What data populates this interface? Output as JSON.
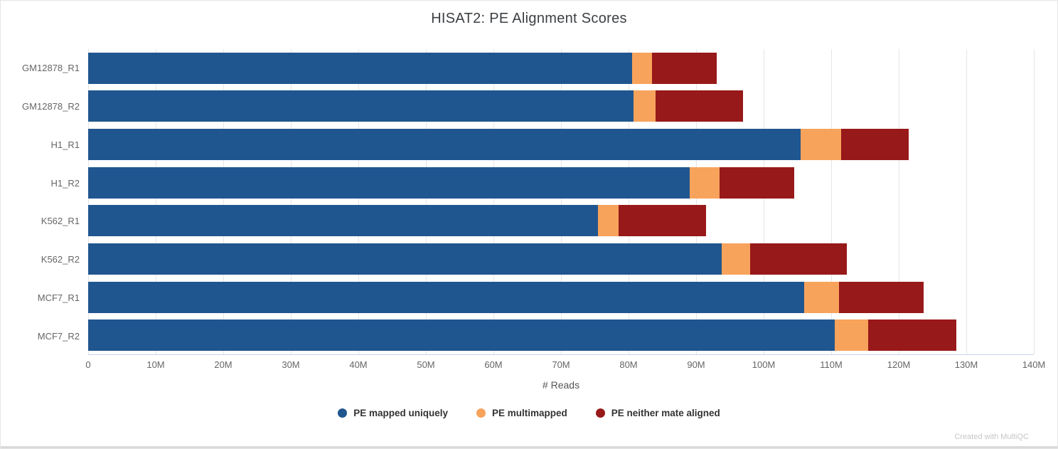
{
  "footer": "Created with MultiQC",
  "chart_data": {
    "type": "bar",
    "orientation": "horizontal",
    "stacked": true,
    "title": "HISAT2: PE Alignment Scores",
    "xlabel": "# Reads",
    "ylabel": "",
    "xlim": [
      0,
      140000000
    ],
    "grid": true,
    "legend_position": "bottom",
    "categories": [
      "GM12878_R1",
      "GM12878_R2",
      "H1_R1",
      "H1_R2",
      "K562_R1",
      "K562_R2",
      "MCF7_R1",
      "MCF7_R2"
    ],
    "x_ticks": [
      {
        "value": 0,
        "label": "0"
      },
      {
        "value": 10000000,
        "label": "10M"
      },
      {
        "value": 20000000,
        "label": "20M"
      },
      {
        "value": 30000000,
        "label": "30M"
      },
      {
        "value": 40000000,
        "label": "40M"
      },
      {
        "value": 50000000,
        "label": "50M"
      },
      {
        "value": 60000000,
        "label": "60M"
      },
      {
        "value": 70000000,
        "label": "70M"
      },
      {
        "value": 80000000,
        "label": "80M"
      },
      {
        "value": 90000000,
        "label": "90M"
      },
      {
        "value": 100000000,
        "label": "100M"
      },
      {
        "value": 110000000,
        "label": "110M"
      },
      {
        "value": 120000000,
        "label": "120M"
      },
      {
        "value": 130000000,
        "label": "130M"
      },
      {
        "value": 140000000,
        "label": "140M"
      }
    ],
    "series": [
      {
        "name": "PE mapped uniquely",
        "color": "#20568f",
        "values": [
          80500000,
          80700000,
          105500000,
          89000000,
          75500000,
          93800000,
          106000000,
          110500000
        ]
      },
      {
        "name": "PE multimapped",
        "color": "#f7a35c",
        "values": [
          3000000,
          3300000,
          6000000,
          4500000,
          3000000,
          4200000,
          5200000,
          5000000
        ]
      },
      {
        "name": "PE neither mate aligned",
        "color": "#981919",
        "values": [
          9500000,
          13000000,
          10000000,
          11000000,
          13000000,
          14300000,
          12500000,
          13000000
        ]
      }
    ]
  }
}
